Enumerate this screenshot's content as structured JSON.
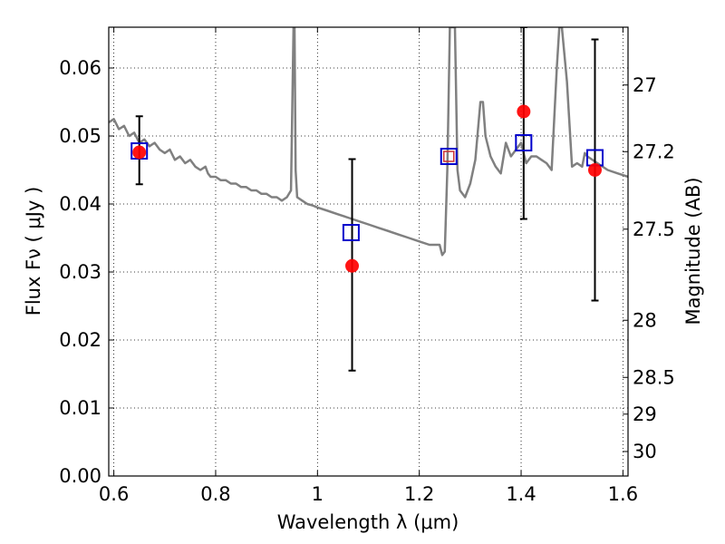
{
  "chart_data": {
    "type": "scatter",
    "xlabel": "Wavelength  λ (μm)",
    "ylabel": "Flux  Fν  ( μJy )",
    "ylabel_right": "Magnitude (AB)",
    "xlim": [
      0.59,
      1.61
    ],
    "ylim": [
      0.0,
      0.066
    ],
    "grid": true,
    "x_ticks": [
      0.6,
      0.8,
      1.0,
      1.2,
      1.4,
      1.6
    ],
    "x_tick_labels": [
      "0.6",
      "0.8",
      "1",
      "1.2",
      "1.4",
      "1.6"
    ],
    "y_ticks": [
      0.0,
      0.01,
      0.02,
      0.03,
      0.04,
      0.05,
      0.06
    ],
    "y_tick_labels": [
      "0.00",
      "0.01",
      "0.02",
      "0.03",
      "0.04",
      "0.05",
      "0.06"
    ],
    "right_ticks": [
      {
        "flux": 0.0575,
        "label": "27"
      },
      {
        "flux": 0.0477,
        "label": "27.2"
      },
      {
        "flux": 0.0363,
        "label": "27.5"
      },
      {
        "flux": 0.0229,
        "label": "28"
      },
      {
        "flux": 0.0145,
        "label": "28.5"
      },
      {
        "flux": 0.0091,
        "label": "29"
      },
      {
        "flux": 0.0036,
        "label": "30"
      }
    ],
    "series": [
      {
        "kind": "line",
        "color": "#808080",
        "x": [
          0.59,
          0.6,
          0.61,
          0.62,
          0.63,
          0.64,
          0.65,
          0.66,
          0.67,
          0.68,
          0.69,
          0.7,
          0.71,
          0.72,
          0.73,
          0.74,
          0.75,
          0.76,
          0.77,
          0.78,
          0.785,
          0.79,
          0.8,
          0.81,
          0.82,
          0.83,
          0.84,
          0.85,
          0.86,
          0.87,
          0.88,
          0.89,
          0.9,
          0.91,
          0.92,
          0.93,
          0.94,
          0.948,
          0.953,
          0.955,
          0.957,
          0.96,
          0.97,
          0.98,
          0.99,
          1.0,
          1.02,
          1.04,
          1.06,
          1.08,
          1.1,
          1.12,
          1.14,
          1.16,
          1.18,
          1.2,
          1.22,
          1.24,
          1.245,
          1.25,
          1.255,
          1.26,
          1.265,
          1.27,
          1.275,
          1.28,
          1.29,
          1.3,
          1.31,
          1.32,
          1.325,
          1.33,
          1.34,
          1.35,
          1.36,
          1.37,
          1.38,
          1.39,
          1.4,
          1.41,
          1.42,
          1.43,
          1.44,
          1.45,
          1.46,
          1.47,
          1.475,
          1.48,
          1.49,
          1.5,
          1.51,
          1.52,
          1.525,
          1.53,
          1.55,
          1.57,
          1.59,
          1.61
        ],
        "y": [
          0.052,
          0.0525,
          0.051,
          0.0515,
          0.05,
          0.0505,
          0.049,
          0.0495,
          0.0485,
          0.049,
          0.048,
          0.0475,
          0.048,
          0.0465,
          0.047,
          0.046,
          0.0465,
          0.0455,
          0.045,
          0.0455,
          0.0445,
          0.044,
          0.044,
          0.0435,
          0.0435,
          0.043,
          0.043,
          0.0425,
          0.0425,
          0.042,
          0.042,
          0.0415,
          0.0415,
          0.041,
          0.041,
          0.0405,
          0.041,
          0.042,
          0.066,
          0.066,
          0.045,
          0.041,
          0.0405,
          0.04,
          0.0398,
          0.0395,
          0.039,
          0.0385,
          0.038,
          0.0375,
          0.037,
          0.0365,
          0.036,
          0.0355,
          0.035,
          0.0345,
          0.034,
          0.034,
          0.0325,
          0.033,
          0.045,
          0.066,
          0.066,
          0.066,
          0.045,
          0.042,
          0.041,
          0.043,
          0.0465,
          0.055,
          0.055,
          0.05,
          0.047,
          0.0455,
          0.0445,
          0.049,
          0.047,
          0.048,
          0.049,
          0.046,
          0.047,
          0.047,
          0.0465,
          0.046,
          0.045,
          0.06,
          0.066,
          0.066,
          0.058,
          0.0455,
          0.046,
          0.0455,
          0.0475,
          0.047,
          0.046,
          0.045,
          0.0445,
          0.044
        ]
      },
      {
        "kind": "square",
        "color": "#0000cc",
        "x": [
          0.65,
          1.066,
          1.258,
          1.405,
          1.545
        ],
        "y": [
          0.0478,
          0.0358,
          0.047,
          0.049,
          0.0468
        ]
      },
      {
        "kind": "square-small",
        "color": "#cc3333",
        "x": [
          1.258
        ],
        "y": [
          0.047
        ]
      },
      {
        "kind": "circle",
        "color": "#ff0000",
        "x": [
          0.65,
          1.068,
          1.405,
          1.545
        ],
        "y": [
          0.0476,
          0.0309,
          0.0536,
          0.045
        ]
      }
    ],
    "errorbars": [
      {
        "x": 0.65,
        "y_low": 0.0429,
        "y_high": 0.0529
      },
      {
        "x": 1.068,
        "y_low": 0.0155,
        "y_high": 0.0466
      },
      {
        "x": 1.405,
        "y_low": 0.0378,
        "y_high": 0.066
      },
      {
        "x": 1.545,
        "y_low": 0.0258,
        "y_high": 0.0642
      }
    ]
  }
}
